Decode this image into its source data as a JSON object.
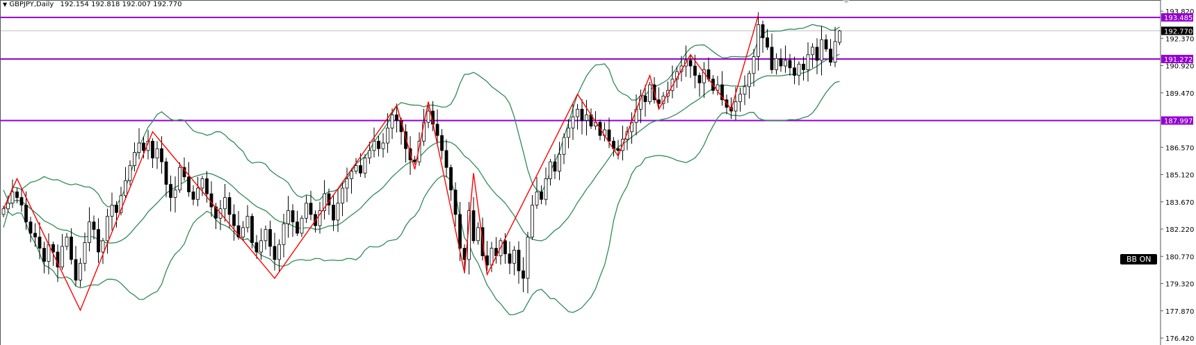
{
  "header": {
    "symbol_label": "GBPJPY,Daily",
    "ohlc_text": "192.154 192.818 192.007 192.770",
    "menu_icon": "triangle-down-icon"
  },
  "bb_badge": "BB ON",
  "colors": {
    "level_line": "#9400d3",
    "zigzag": "#ff0000",
    "bollinger": "#2e8b57",
    "bull_body": "#ffffff",
    "bear_body": "#000000",
    "current_price_tag": "#000000"
  },
  "chart_data": {
    "type": "candlestick",
    "symbol": "GBPJPY",
    "timeframe": "Daily",
    "ylim": [
      176.42,
      193.82
    ],
    "y_ticks": [
      "193.820",
      "192.370",
      "190.920",
      "189.470",
      "186.570",
      "185.120",
      "183.670",
      "182.220",
      "180.770",
      "179.320",
      "177.870",
      "176.420"
    ],
    "grid": false,
    "last_candle": {
      "open": 192.154,
      "high": 192.818,
      "low": 192.007,
      "close": 192.77
    },
    "current_price": "192.770",
    "levels": [
      "193.485",
      "191.272",
      "187.997"
    ],
    "closes": [
      183.3,
      183.6,
      184.2,
      183.9,
      183.5,
      182.6,
      182.0,
      181.8,
      181.2,
      180.5,
      181.4,
      181.0,
      180.2,
      181.3,
      181.8,
      180.6,
      179.5,
      180.4,
      181.5,
      182.6,
      182.2,
      181.0,
      181.6,
      182.9,
      183.5,
      183.1,
      184.0,
      184.8,
      185.6,
      186.3,
      186.8,
      186.4,
      186.9,
      186.0,
      186.5,
      185.8,
      184.6,
      183.9,
      184.3,
      185.5,
      185.0,
      184.2,
      183.8,
      184.4,
      184.9,
      184.1,
      183.4,
      182.8,
      183.3,
      183.9,
      183.0,
      182.4,
      181.8,
      182.3,
      182.9,
      181.5,
      181.0,
      181.6,
      182.2,
      181.3,
      180.6,
      181.4,
      182.5,
      183.2,
      182.6,
      182.0,
      182.8,
      183.6,
      183.0,
      182.4,
      183.2,
      184.1,
      183.5,
      182.7,
      183.6,
      184.4,
      184.9,
      185.3,
      185.6,
      185.2,
      186.0,
      186.4,
      186.9,
      186.5,
      186.8,
      187.6,
      188.3,
      188.0,
      187.4,
      186.5,
      185.9,
      185.8,
      186.9,
      187.9,
      188.5,
      187.8,
      187.2,
      186.4,
      185.5,
      184.3,
      183.0,
      181.2,
      180.6,
      183.2,
      181.6,
      182.3,
      180.8,
      180.3,
      181.2,
      180.8,
      181.6,
      180.9,
      180.4,
      181.1,
      180.0,
      179.6,
      181.8,
      183.5,
      184.2,
      183.8,
      184.9,
      185.8,
      185.3,
      186.2,
      187.1,
      187.6,
      188.2,
      188.6,
      188.0,
      188.3,
      187.7,
      187.9,
      187.2,
      187.5,
      186.9,
      186.5,
      186.4,
      187.0,
      187.4,
      187.9,
      188.6,
      189.3,
      189.0,
      189.9,
      189.1,
      188.9,
      189.3,
      189.6,
      190.2,
      190.6,
      190.9,
      191.2,
      190.9,
      190.4,
      190.0,
      190.7,
      190.2,
      189.6,
      189.9,
      189.1,
      188.7,
      188.5,
      189.0,
      189.4,
      189.8,
      190.5,
      191.4,
      193.1,
      192.4,
      191.9,
      190.7,
      191.3,
      190.9,
      191.2,
      190.8,
      190.4,
      191.0,
      190.7,
      191.5,
      191.9,
      191.2,
      192.3,
      191.8,
      191.1,
      192.2,
      192.77
    ],
    "zigzag": [
      {
        "bar": 0,
        "price": 183.3
      },
      {
        "bar": 3,
        "price": 184.9
      },
      {
        "bar": 17,
        "price": 177.9
      },
      {
        "bar": 33,
        "price": 187.4
      },
      {
        "bar": 60,
        "price": 179.6
      },
      {
        "bar": 87,
        "price": 188.8
      },
      {
        "bar": 91,
        "price": 185.4
      },
      {
        "bar": 94,
        "price": 189.0
      },
      {
        "bar": 102,
        "price": 179.9
      },
      {
        "bar": 104,
        "price": 185.2
      },
      {
        "bar": 107,
        "price": 179.8
      },
      {
        "bar": 127,
        "price": 189.4
      },
      {
        "bar": 136,
        "price": 186.1
      },
      {
        "bar": 143,
        "price": 190.4
      },
      {
        "bar": 145,
        "price": 188.6
      },
      {
        "bar": 152,
        "price": 191.5
      },
      {
        "bar": 161,
        "price": 188.6
      },
      {
        "bar": 167,
        "price": 193.6
      }
    ],
    "indicators": [
      "Bollinger Bands",
      "ZigZag"
    ]
  }
}
